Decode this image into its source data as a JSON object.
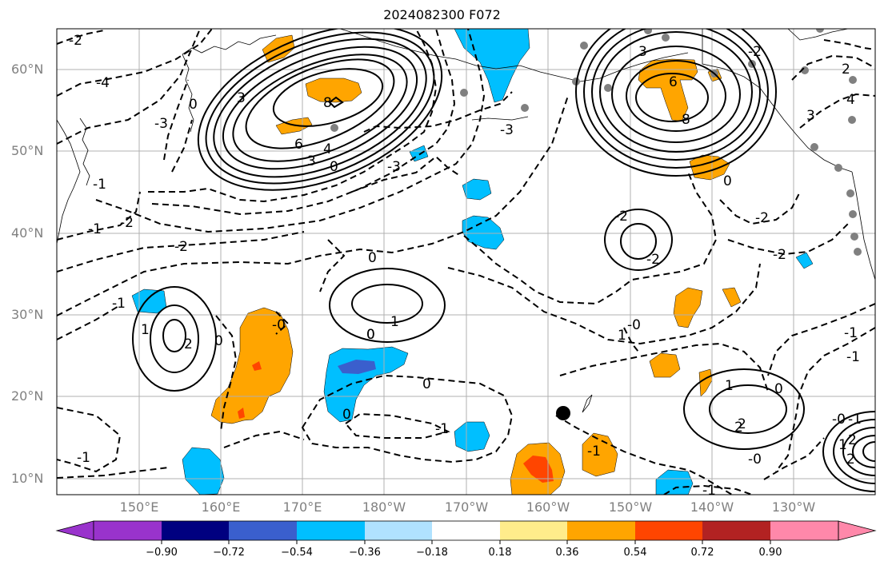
{
  "title": "2024082300 F072",
  "lat_labels": [
    "60°N",
    "50°N",
    "40°N",
    "30°N",
    "20°N",
    "10°N"
  ],
  "lon_labels": [
    "150°E",
    "160°E",
    "170°E",
    "180°W",
    "170°W",
    "160°W",
    "150°W",
    "140°W",
    "130°W"
  ],
  "colorbar": {
    "ticks": [
      "−0.90",
      "−0.72",
      "−0.54",
      "−0.36",
      "−0.18",
      "0.18",
      "0.36",
      "0.54",
      "0.72",
      "0.90"
    ],
    "colors": [
      "#9933cc",
      "#000080",
      "#3a5fcd",
      "#00bfff",
      "#b0e2ff",
      "#ffffff",
      "#ffec8b",
      "#ffa500",
      "#ff4500",
      "#b22222",
      "#ff88aa"
    ]
  },
  "contour_labels": [
    {
      "text": "-2"
    },
    {
      "text": "-4"
    },
    {
      "text": "0"
    },
    {
      "text": "-3"
    },
    {
      "text": "3"
    },
    {
      "text": "-1"
    },
    {
      "text": "8"
    },
    {
      "text": "6"
    },
    {
      "text": "4"
    },
    {
      "text": "3"
    },
    {
      "text": "0"
    },
    {
      "text": "-3"
    },
    {
      "text": "-1"
    },
    {
      "text": "-2"
    },
    {
      "text": "-3"
    },
    {
      "text": "3"
    },
    {
      "text": "-2"
    },
    {
      "text": "6"
    },
    {
      "text": "8"
    },
    {
      "text": "2"
    },
    {
      "text": "4"
    },
    {
      "text": "3"
    },
    {
      "text": "-2"
    },
    {
      "text": "-2"
    },
    {
      "text": "0"
    },
    {
      "text": "-2"
    },
    {
      "text": "0"
    },
    {
      "text": "1"
    },
    {
      "text": "-2"
    },
    {
      "text": "-2"
    },
    {
      "text": "0"
    },
    {
      "text": "-1"
    },
    {
      "text": "1"
    },
    {
      "text": "2"
    },
    {
      "text": "0"
    },
    {
      "text": "-0"
    },
    {
      "text": "0"
    },
    {
      "text": "1"
    },
    {
      "text": "-1"
    },
    {
      "text": "0"
    },
    {
      "text": "2"
    },
    {
      "text": "-1"
    },
    {
      "text": "-1"
    },
    {
      "text": "-1"
    },
    {
      "text": "-1"
    },
    {
      "text": "1"
    },
    {
      "text": "2"
    },
    {
      "text": "0"
    },
    {
      "text": "-0"
    },
    {
      "text": "-1"
    },
    {
      "text": "-0"
    },
    {
      "text": "-1"
    },
    {
      "text": "2"
    },
    {
      "text": "0"
    },
    {
      "text": "-0"
    },
    {
      "text": "1"
    },
    {
      "text": "2"
    }
  ]
}
